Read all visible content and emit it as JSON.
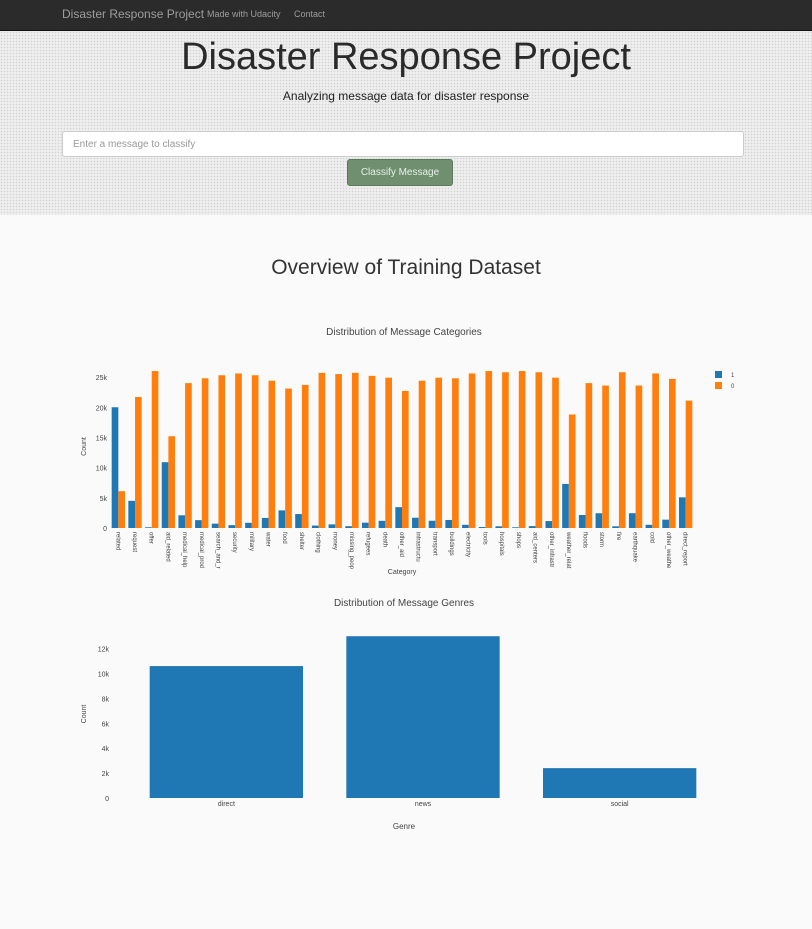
{
  "navbar": {
    "brand": "Disaster Response Project",
    "links": [
      "Made with Udacity",
      "Contact"
    ]
  },
  "header": {
    "title": "Disaster Response Project",
    "subtitle": "Analyzing message data for disaster response"
  },
  "classify_form": {
    "placeholder": "Enter a message to classify",
    "button_label": "Classify Message"
  },
  "overview_title": "Overview of Training Dataset",
  "colors": {
    "series_1": "#1f77b4",
    "series_0": "#ff7f0e",
    "navbar_bg": "#2b2b2b",
    "button_bg": "#6f8f6f"
  },
  "chart_data": [
    {
      "type": "bar",
      "title": "Distribution of Message Categories",
      "xlabel": "Category",
      "ylabel": "Count",
      "ylim": [
        0,
        27000
      ],
      "yticks": [
        0,
        5000,
        10000,
        15000,
        20000,
        25000
      ],
      "ytick_labels": [
        "0",
        "5k",
        "10k",
        "15k",
        "20k",
        "25k"
      ],
      "legend_position": "top-right",
      "categories": [
        "related",
        "request",
        "offer",
        "aid_related",
        "medical_help",
        "medical_prod",
        "search_and_r",
        "security",
        "military",
        "water",
        "food",
        "shelter",
        "clothing",
        "money",
        "missing_peop",
        "refugees",
        "death",
        "other_aid",
        "infrastructu",
        "transport",
        "buildings",
        "electricity",
        "tools",
        "hospitals",
        "shops",
        "aid_centers",
        "other_infrastr",
        "weather_relat",
        "floods",
        "storm",
        "fire",
        "earthquake",
        "cold",
        "other_weathe",
        "direct_report"
      ],
      "series": [
        {
          "name": "1",
          "values": [
            20000,
            4500,
            120,
            10900,
            2100,
            1300,
            720,
            470,
            860,
            1670,
            2920,
            2310,
            400,
            600,
            300,
            880,
            1190,
            3450,
            1700,
            1200,
            1330,
            530,
            160,
            280,
            120,
            310,
            1150,
            7300,
            2150,
            2440,
            280,
            2450,
            530,
            1380,
            5080
          ]
        },
        {
          "name": "0",
          "values": [
            6100,
            21700,
            26000,
            15200,
            24000,
            24800,
            25300,
            25600,
            25300,
            24400,
            23100,
            23700,
            25700,
            25500,
            25700,
            25200,
            24900,
            22700,
            24400,
            24900,
            24800,
            25600,
            26000,
            25800,
            26000,
            25800,
            24900,
            18800,
            24000,
            23600,
            25800,
            23600,
            25600,
            24700,
            21100
          ]
        }
      ]
    },
    {
      "type": "bar",
      "title": "Distribution of Message Genres",
      "xlabel": "Genre",
      "ylabel": "Count",
      "ylim": [
        0,
        13500
      ],
      "yticks": [
        0,
        2000,
        4000,
        6000,
        8000,
        10000,
        12000
      ],
      "ytick_labels": [
        "0",
        "2k",
        "4k",
        "6k",
        "8k",
        "10k",
        "12k"
      ],
      "categories": [
        "direct",
        "news",
        "social"
      ],
      "values": [
        10600,
        13000,
        2400
      ]
    }
  ]
}
